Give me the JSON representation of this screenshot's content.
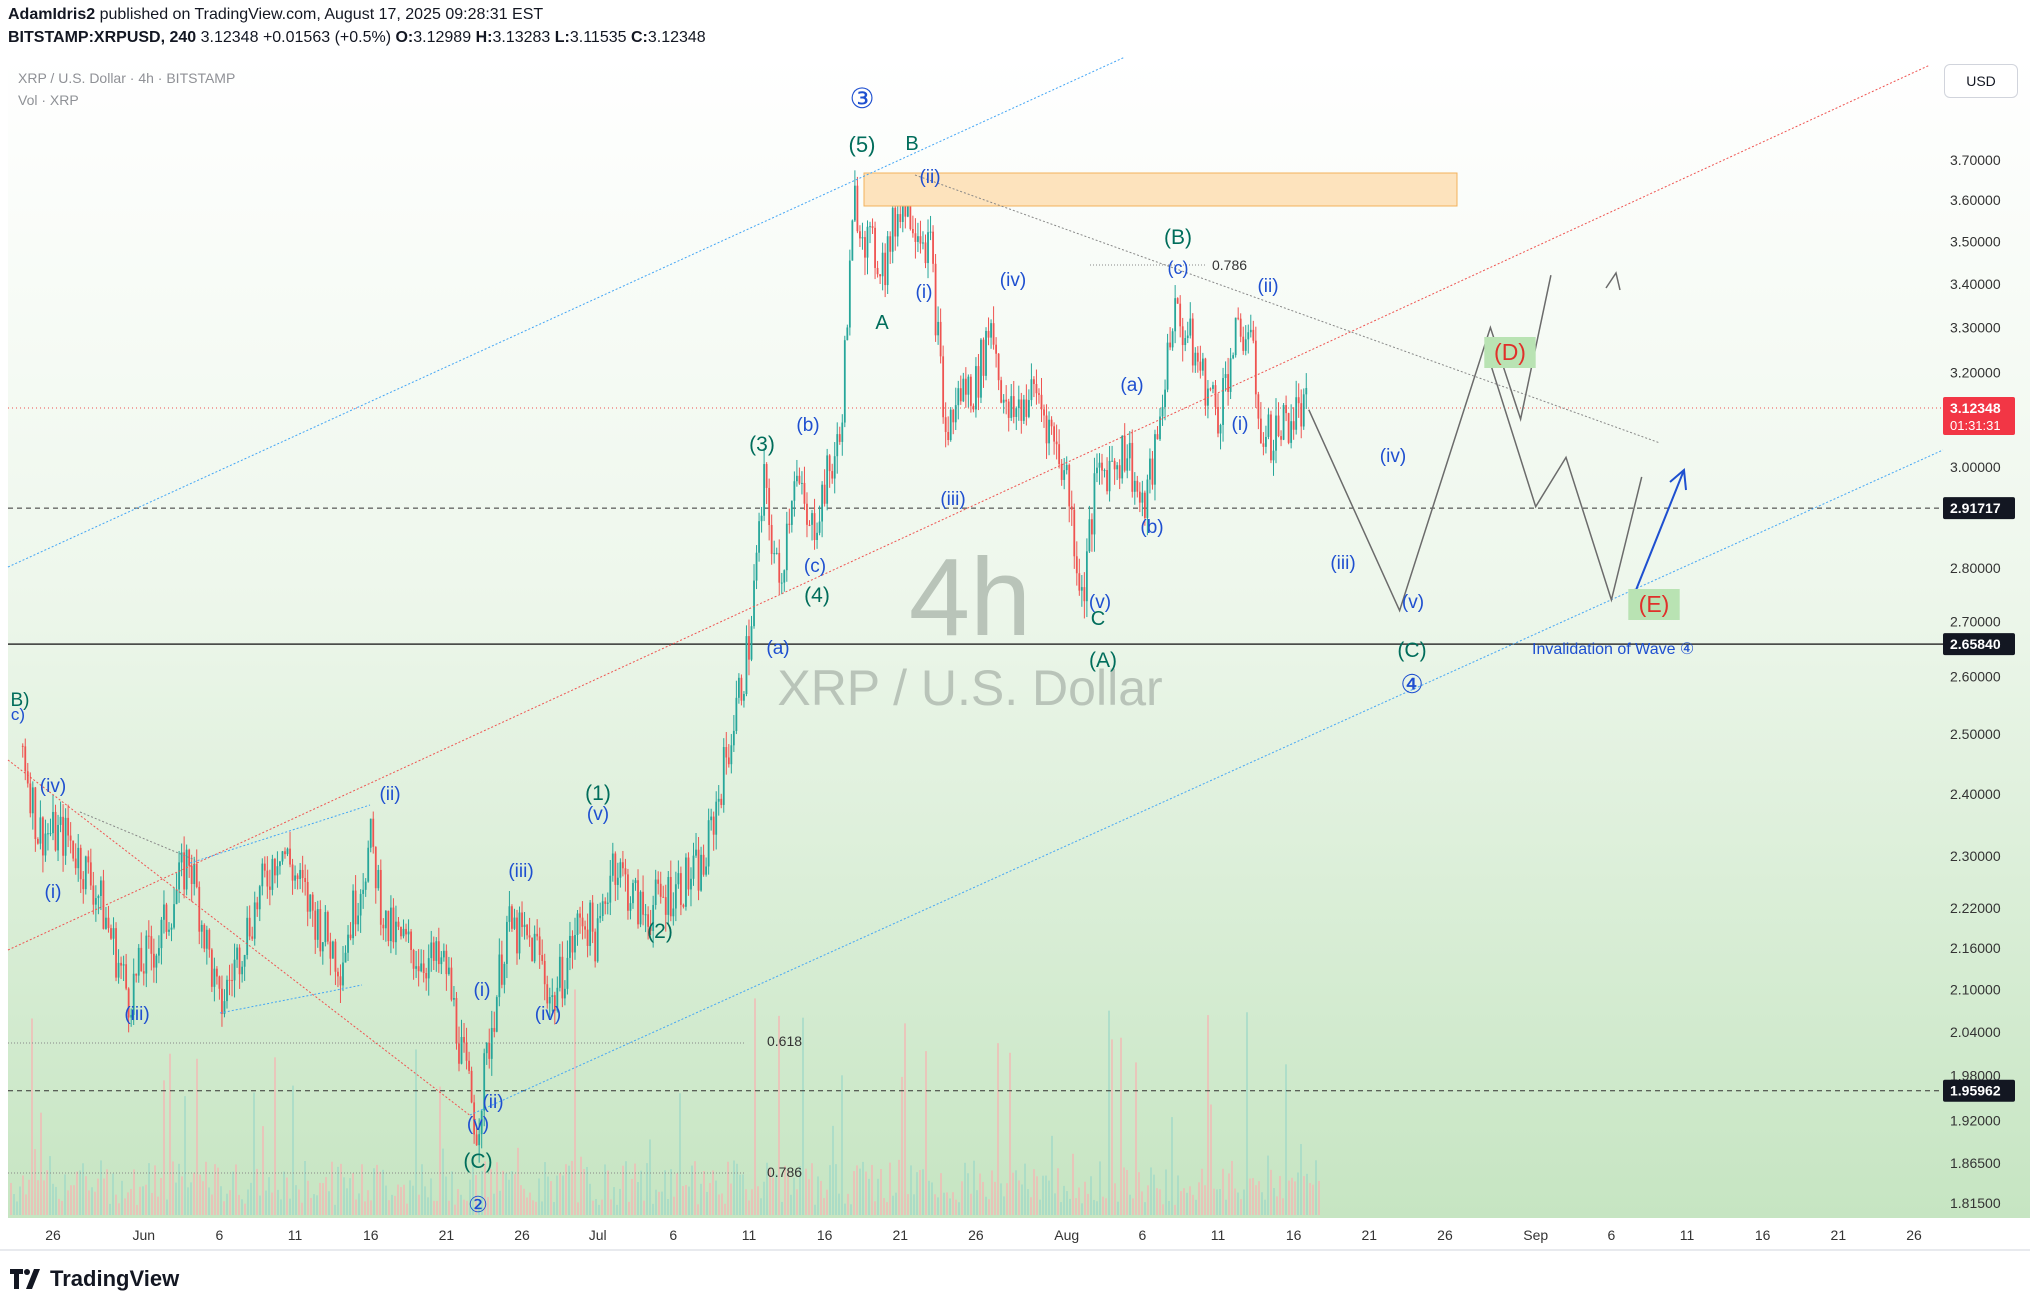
{
  "header": {
    "author": "AdamIdris2",
    "published": "published on TradingView.com, August 17, 2025 09:28:31 EST",
    "symbol": "BITSTAMP:XRPUSD, 240",
    "last": "3.12348",
    "change": "+0.01563 (+0.5%)",
    "o_label": "O:",
    "o": "3.12989",
    "h_label": "H:",
    "h": "3.13283",
    "l_label": "L:",
    "l": "3.11535",
    "c_label": "C:",
    "c": "3.12348"
  },
  "legend": {
    "title": "XRP / U.S. Dollar · 4h · BITSTAMP",
    "vol": "Vol · XRP"
  },
  "watermark": {
    "interval": "4h",
    "name": "XRP / U.S. Dollar"
  },
  "currency_button": "USD",
  "footer": {
    "brand": "TradingView"
  },
  "colors": {
    "bg_top": "#ffffff",
    "bg_bottom": "#c9e6c5",
    "up": "#26a69a",
    "down": "#ef5350",
    "wave_teal": "#006d5b",
    "wave_blue": "#1e4fd0",
    "wave_red": "#e0302a",
    "channel_blue": "#42a5f5",
    "resistance_box": "#fde3bd"
  },
  "chart_data": {
    "type": "line",
    "title": "XRP / U.S. Dollar · 4h · BITSTAMP",
    "y_scale": "log",
    "price_ticks": [
      "3.70000",
      "3.60000",
      "3.50000",
      "3.40000",
      "3.30000",
      "3.20000",
      "3.00000",
      "2.80000",
      "2.70000",
      "2.60000",
      "2.50000",
      "2.40000",
      "2.30000",
      "2.22000",
      "2.16000",
      "2.10000",
      "2.04000",
      "1.98000",
      "1.92000",
      "1.86500",
      "1.81500"
    ],
    "x_ticks": [
      "26",
      "Jun",
      "6",
      "11",
      "16",
      "21",
      "26",
      "Jul",
      "6",
      "11",
      "16",
      "21",
      "26",
      "Aug",
      "6",
      "11",
      "16",
      "21",
      "26",
      "Sep",
      "6",
      "11",
      "16",
      "21",
      "26"
    ],
    "price_path": [
      [
        "May 24",
        2.48
      ],
      [
        "May 25",
        2.34
      ],
      [
        "May 27",
        2.33
      ],
      [
        "May 29",
        2.24
      ],
      [
        "May 31",
        2.09
      ],
      [
        "Jun 1",
        2.14
      ],
      [
        "Jun 2",
        2.17
      ],
      [
        "Jun 4",
        2.3
      ],
      [
        "Jun 6",
        2.07
      ],
      [
        "Jun 8",
        2.2
      ],
      [
        "Jun 10",
        2.32
      ],
      [
        "Jun 12",
        2.22
      ],
      [
        "Jun 14",
        2.14
      ],
      [
        "Jun 16",
        2.32
      ],
      [
        "Jun 17",
        2.19
      ],
      [
        "Jun 19",
        2.15
      ],
      [
        "Jun 21",
        2.13
      ],
      [
        "Jun 22",
        2.01
      ],
      [
        "Jun 23",
        1.91
      ],
      [
        "Jun 24",
        2.05
      ],
      [
        "Jun 25",
        2.19
      ],
      [
        "Jun 27",
        2.16
      ],
      [
        "Jun 28",
        2.08
      ],
      [
        "Jun 30",
        2.21
      ],
      [
        "Jul 1",
        2.17
      ],
      [
        "Jul 2",
        2.3
      ],
      [
        "Jul 3",
        2.25
      ],
      [
        "Jul 4",
        2.21
      ],
      [
        "Jul 6",
        2.25
      ],
      [
        "Jul 8",
        2.28
      ],
      [
        "Jul 9",
        2.4
      ],
      [
        "Jul 10",
        2.52
      ],
      [
        "Jul 11",
        2.66
      ],
      [
        "Jul 12",
        2.96
      ],
      [
        "Jul 13",
        2.76
      ],
      [
        "Jul 14",
        3.0
      ],
      [
        "Jul 15",
        2.86
      ],
      [
        "Jul 16",
        2.96
      ],
      [
        "Jul 17",
        3.05
      ],
      [
        "Jul 18",
        3.6
      ],
      [
        "Jul 19",
        3.48
      ],
      [
        "Jul 20",
        3.45
      ],
      [
        "Jul 21",
        3.6
      ],
      [
        "Jul 22",
        3.56
      ],
      [
        "Jul 23",
        3.48
      ],
      [
        "Jul 24",
        3.06
      ],
      [
        "Jul 25",
        3.16
      ],
      [
        "Jul 26",
        3.17
      ],
      [
        "Jul 27",
        3.32
      ],
      [
        "Jul 28",
        3.1
      ],
      [
        "Jul 30",
        3.16
      ],
      [
        "Aug 1",
        2.98
      ],
      [
        "Aug 2",
        2.74
      ],
      [
        "Aug 3",
        2.98
      ],
      [
        "Aug 5",
        3.04
      ],
      [
        "Aug 6",
        2.9
      ],
      [
        "Aug 7",
        3.05
      ],
      [
        "Aug 8",
        3.34
      ],
      [
        "Aug 9",
        3.28
      ],
      [
        "Aug 10",
        3.19
      ],
      [
        "Aug 11",
        3.11
      ],
      [
        "Aug 12",
        3.26
      ],
      [
        "Aug 13",
        3.3
      ],
      [
        "Aug 14",
        3.05
      ],
      [
        "Aug 15",
        3.08
      ],
      [
        "Aug 16",
        3.11
      ],
      [
        "Aug 17",
        3.12
      ]
    ],
    "projection_main": [
      [
        "Aug 17",
        3.12
      ],
      [
        "Aug 23",
        2.72
      ],
      [
        "Aug 29",
        3.3
      ],
      [
        "Aug 31",
        3.1
      ],
      [
        "Sep 2",
        3.42
      ]
    ],
    "projection_alt_triangle": [
      [
        "Aug 29",
        3.22
      ],
      [
        "Sep 1",
        2.92
      ],
      [
        "Sep 3",
        3.02
      ],
      [
        "Sep 6",
        2.74
      ],
      [
        "Sep 8",
        2.98
      ]
    ],
    "price_labels": [
      {
        "value": "3.12348",
        "sub": "01:31:31",
        "kind": "last"
      },
      {
        "value": "2.91717",
        "kind": "level"
      },
      {
        "value": "2.65840",
        "kind": "invalidation"
      },
      {
        "value": "1.95962",
        "kind": "level"
      }
    ],
    "fib_levels": [
      {
        "label": "0.786"
      },
      {
        "label": "0.618"
      },
      {
        "label": "0.786"
      }
    ],
    "annotations": [
      {
        "text": "③",
        "color": "blue"
      },
      {
        "text": "(5)",
        "color": "teal"
      },
      {
        "text": "B",
        "color": "teal"
      },
      {
        "text": "(ii)",
        "color": "blue"
      },
      {
        "text": "(i)",
        "color": "blue"
      },
      {
        "text": "A",
        "color": "teal"
      },
      {
        "text": "(iv)",
        "color": "blue"
      },
      {
        "text": "(iii)",
        "color": "blue"
      },
      {
        "text": "(B)",
        "color": "teal"
      },
      {
        "text": "(c)",
        "color": "blue"
      },
      {
        "text": "(ii)",
        "color": "blue"
      },
      {
        "text": "(i)",
        "color": "blue"
      },
      {
        "text": "(a)",
        "color": "blue"
      },
      {
        "text": "(b)",
        "color": "blue"
      },
      {
        "text": "(v)",
        "color": "blue"
      },
      {
        "text": "C",
        "color": "teal"
      },
      {
        "text": "(A)",
        "color": "teal"
      },
      {
        "text": "(iv)",
        "color": "blue"
      },
      {
        "text": "(iii)",
        "color": "blue"
      },
      {
        "text": "(v)",
        "color": "blue"
      },
      {
        "text": "(C)",
        "color": "teal"
      },
      {
        "text": "④",
        "color": "blue"
      },
      {
        "text": "(D)",
        "color": "red"
      },
      {
        "text": "(E)",
        "color": "red"
      },
      {
        "text": "Invalidation of Wave ④",
        "color": "blue"
      },
      {
        "text": "(3)",
        "color": "teal"
      },
      {
        "text": "(b)",
        "color": "blue"
      },
      {
        "text": "(c)",
        "color": "blue"
      },
      {
        "text": "(4)",
        "color": "teal"
      },
      {
        "text": "(a)",
        "color": "blue"
      },
      {
        "text": "(1)",
        "color": "teal"
      },
      {
        "text": "(v)",
        "color": "blue"
      },
      {
        "text": "(2)",
        "color": "teal"
      },
      {
        "text": "(iii)",
        "color": "blue"
      },
      {
        "text": "(iv)",
        "color": "blue"
      },
      {
        "text": "(i)",
        "color": "blue"
      },
      {
        "text": "(ii)",
        "color": "blue"
      },
      {
        "text": "(v)",
        "color": "blue"
      },
      {
        "text": "(C)",
        "color": "teal"
      },
      {
        "text": "②",
        "color": "blue"
      },
      {
        "text": "(ii)",
        "color": "blue"
      },
      {
        "text": "(iv)",
        "color": "blue"
      },
      {
        "text": "(i)",
        "color": "blue"
      },
      {
        "text": "(iii)",
        "color": "blue"
      },
      {
        "text": "B)",
        "color": "teal"
      },
      {
        "text": "c)",
        "color": "blue"
      }
    ],
    "grid": false,
    "legend": "top-left"
  }
}
